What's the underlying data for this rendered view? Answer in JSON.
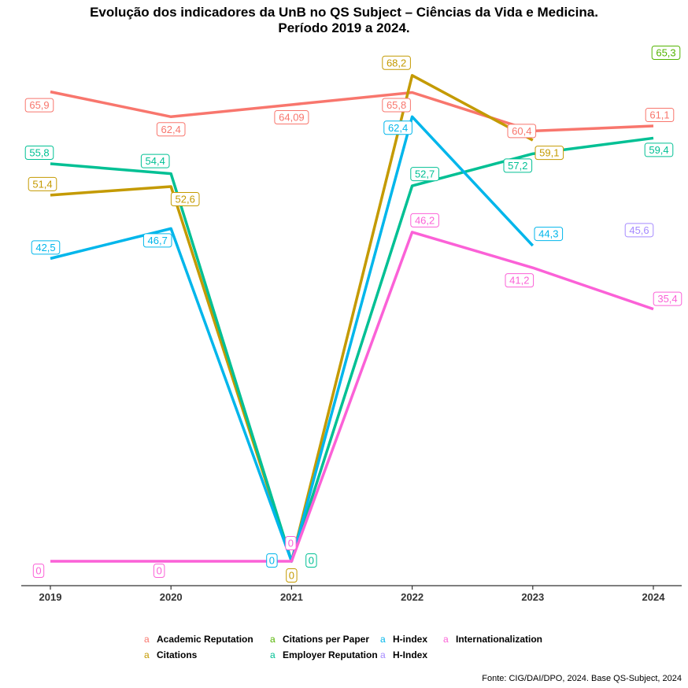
{
  "chart_data": {
    "type": "line",
    "title": "Evolução dos indicadores da UnB no QS Subject – Ciências da Vida e Medicina.",
    "subtitle": "Período 2019 a 2024.",
    "x": [
      "2019",
      "2020",
      "2021",
      "2022",
      "2023",
      "2024"
    ],
    "ylim": [
      -3,
      75
    ],
    "grid": false,
    "legend_position": "bottom",
    "series": [
      {
        "name": "Academic Reputation",
        "color": "#F8766D",
        "values": [
          65.9,
          62.4,
          64.09,
          65.8,
          60.4,
          61.1
        ],
        "labels": [
          "65,9",
          "62,4",
          "64,09",
          "65,8",
          "60,4",
          "61,1"
        ]
      },
      {
        "name": "Citations",
        "color": "#C49A00",
        "values": [
          51.4,
          52.6,
          0,
          68.2,
          59.1,
          null
        ],
        "labels": [
          "51,4",
          "52,6",
          "0",
          "68,2",
          "59,1",
          ""
        ]
      },
      {
        "name": "Citations per Paper",
        "color": "#53B400",
        "values": [
          null,
          null,
          null,
          null,
          null,
          65.3
        ],
        "labels": [
          "",
          "",
          "",
          "",
          "",
          "65,3"
        ]
      },
      {
        "name": "Employer Reputation",
        "color": "#00C094",
        "values": [
          55.8,
          54.4,
          0,
          52.7,
          57.2,
          59.4
        ],
        "labels": [
          "55,8",
          "54,4",
          "0",
          "52,7",
          "57,2",
          "59,4"
        ]
      },
      {
        "name": "H-index",
        "color": "#00B6EB",
        "values": [
          42.5,
          46.7,
          0,
          62.4,
          44.3,
          null
        ],
        "labels": [
          "42,5",
          "46,7",
          "0",
          "62,4",
          "44,3",
          ""
        ]
      },
      {
        "name": "H-Index",
        "color": "#A58AFF",
        "values": [
          null,
          null,
          null,
          null,
          null,
          45.6
        ],
        "labels": [
          "",
          "",
          "",
          "",
          "",
          "45,6"
        ]
      },
      {
        "name": "Internationalization",
        "color": "#FB61D7",
        "values": [
          0,
          0,
          0,
          46.2,
          41.2,
          35.4
        ],
        "labels": [
          "0",
          "0",
          "0",
          "46,2",
          "41,2",
          "35,4"
        ]
      }
    ]
  },
  "legend": {
    "key_glyph": "a",
    "items": [
      {
        "label": "Academic Reputation",
        "color": "#F8766D"
      },
      {
        "label": "Citations per Paper",
        "color": "#53B400"
      },
      {
        "label": "H-index",
        "color": "#00B6EB"
      },
      {
        "label": "Internationalization",
        "color": "#FB61D7"
      },
      {
        "label": "Citations",
        "color": "#C49A00"
      },
      {
        "label": "Employer Reputation",
        "color": "#00C094"
      },
      {
        "label": "H-Index",
        "color": "#A58AFF"
      }
    ]
  },
  "caption": "Fonte: CIG/DAI/DPO, 2024. Base QS-Subject, 2024"
}
